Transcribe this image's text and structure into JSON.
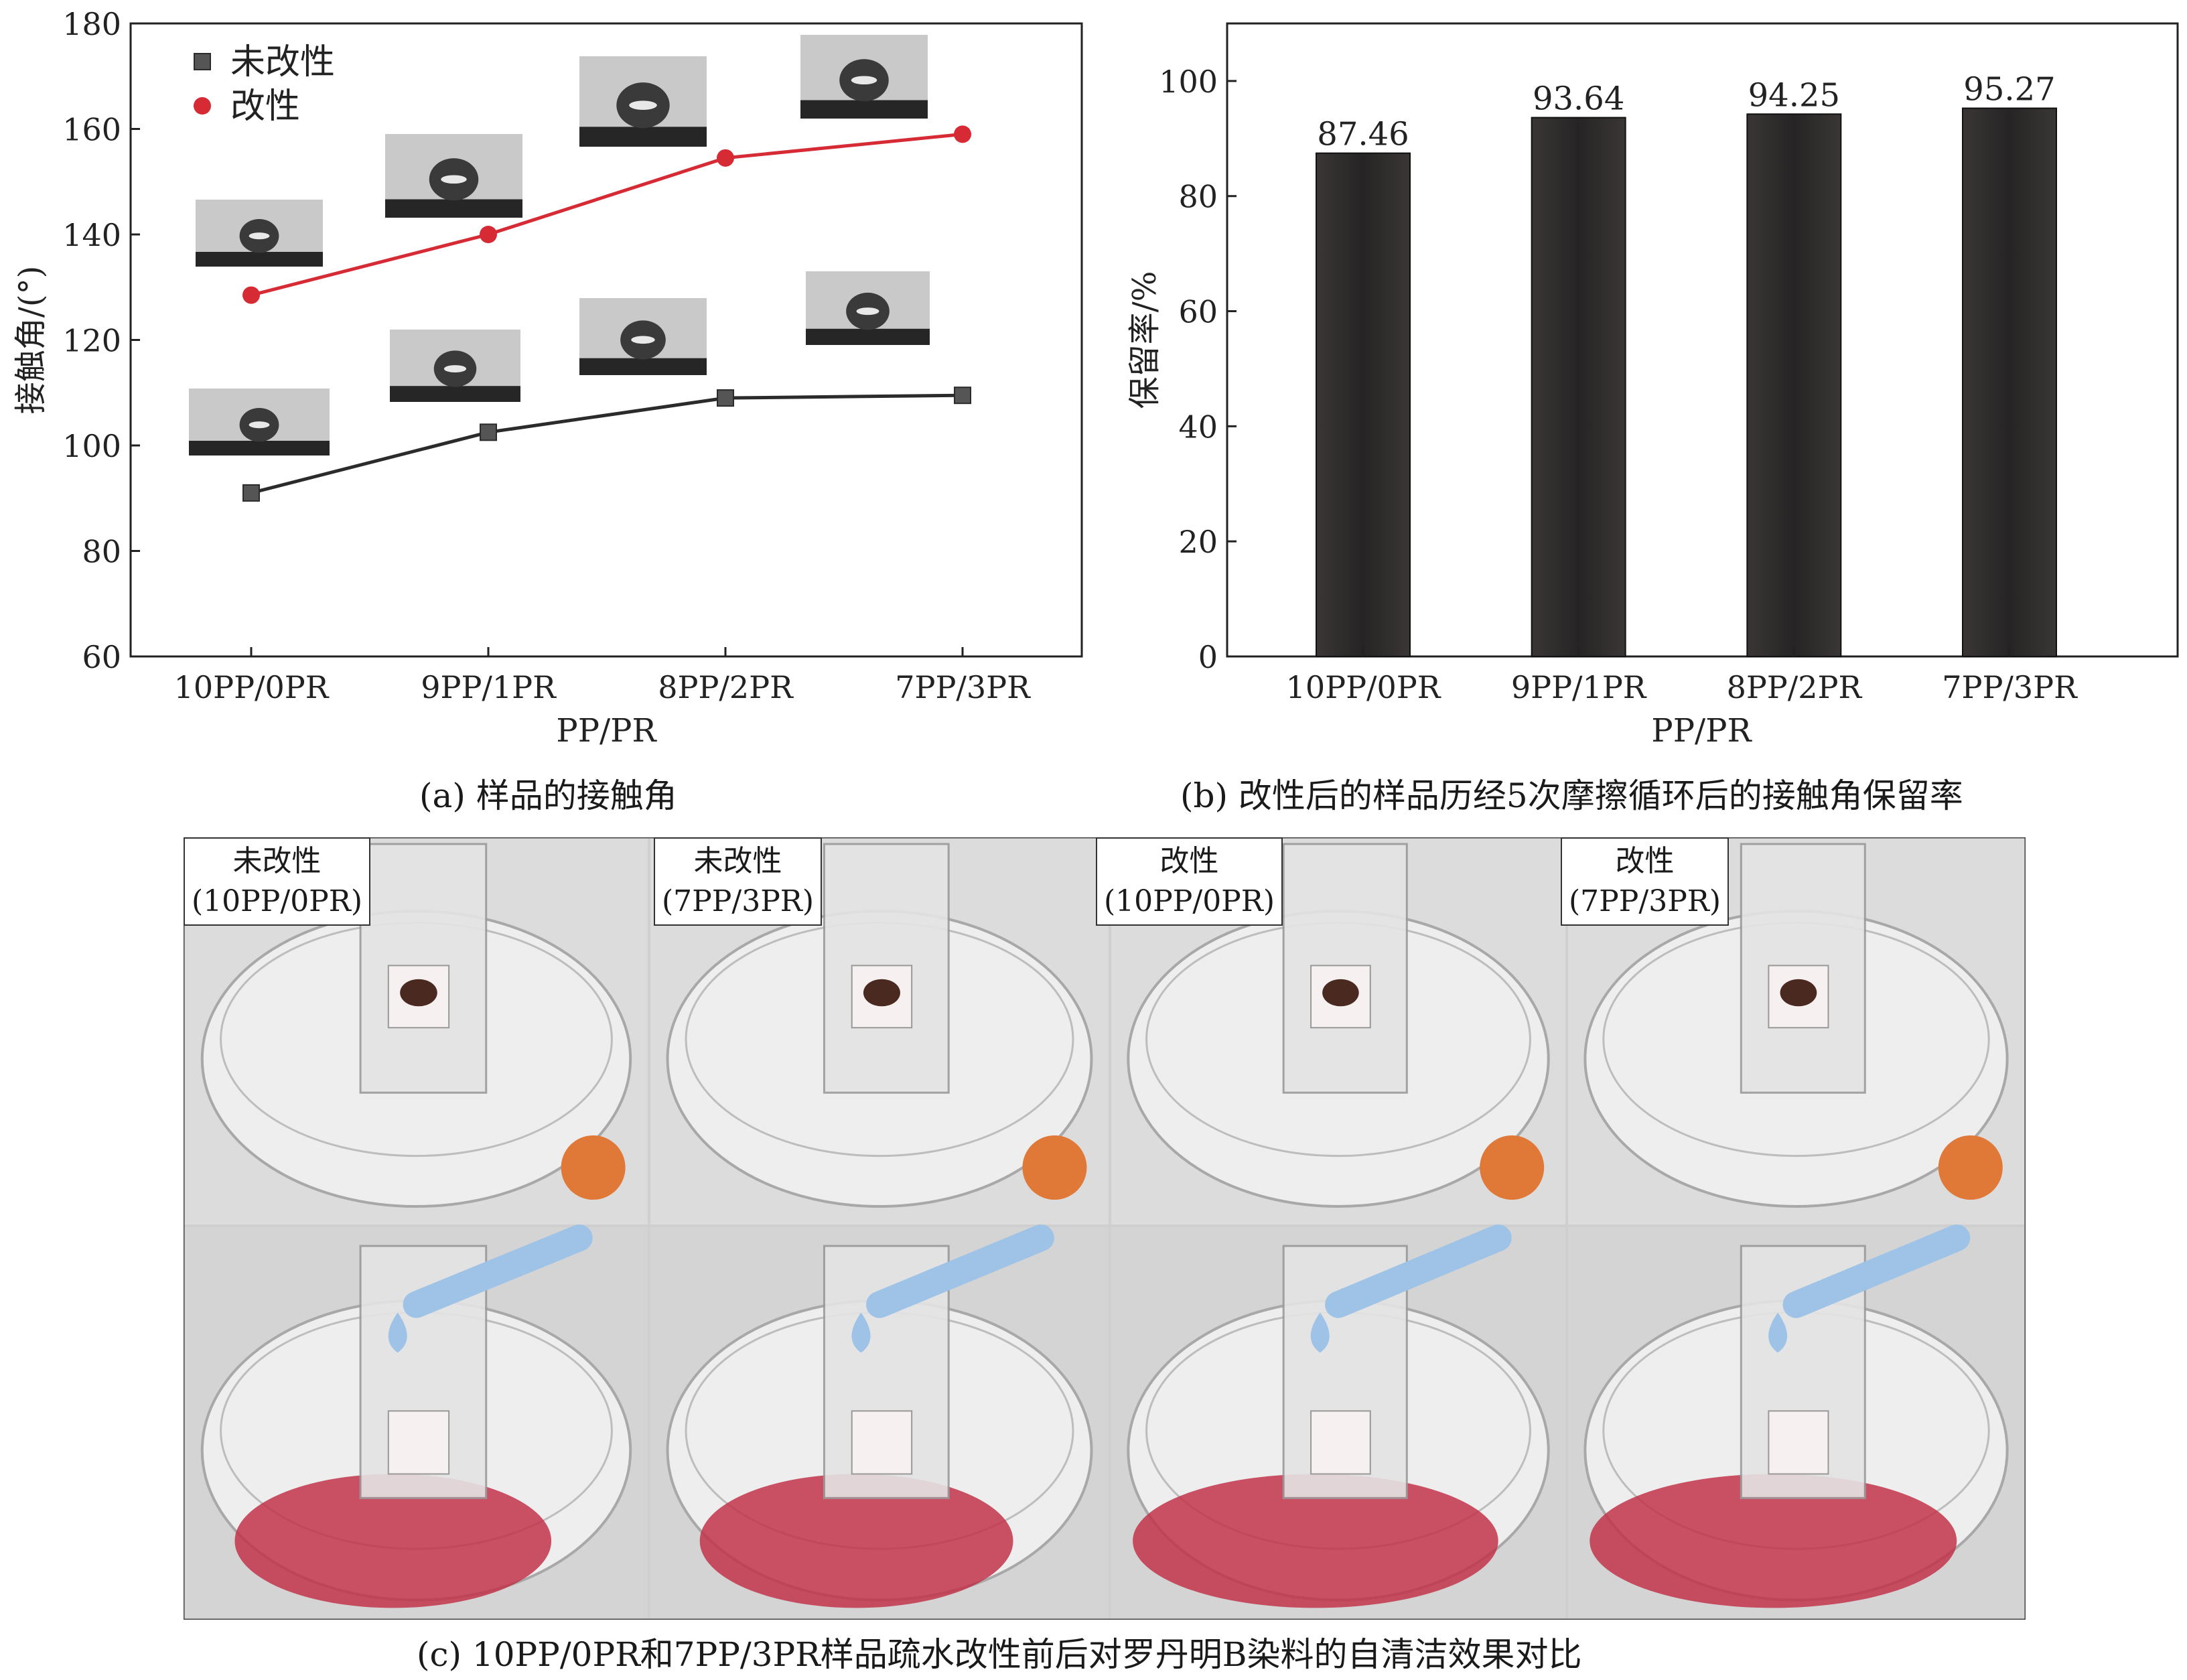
{
  "figure": {
    "caption_a": "(a) 样品的接触角",
    "caption_b": "(b) 改性后的样品历经5次摩擦循环后的接触角保留率",
    "caption_c": "(c) 10PP/0PR和7PP/3PR样品疏水改性前后对罗丹明B染料的自清洁效果对比"
  },
  "chart_data": [
    {
      "type": "line",
      "categories": [
        "10PP/0PR",
        "9PP/1PR",
        "8PP/2PR",
        "7PP/3PR"
      ],
      "series": [
        {
          "name": "未改性",
          "values": [
            91,
            102.5,
            109,
            109.5
          ],
          "color": "#2b2b2b",
          "marker": "square"
        },
        {
          "name": "改性",
          "values": [
            128.5,
            140,
            154.5,
            159
          ],
          "color": "#d62b35",
          "marker": "circle"
        }
      ],
      "xlabel": "PP/PR",
      "ylabel": "接触角/(°)",
      "ylim": [
        60,
        180
      ],
      "yticks": [
        60,
        80,
        100,
        120,
        140,
        160,
        180
      ],
      "legend": "top-left",
      "grid": false
    },
    {
      "type": "bar",
      "categories": [
        "10PP/0PR",
        "9PP/1PR",
        "8PP/2PR",
        "7PP/3PR"
      ],
      "values": [
        87.46,
        93.64,
        94.25,
        95.27
      ],
      "data_labels": [
        "87.46",
        "93.64",
        "94.25",
        "95.27"
      ],
      "xlabel": "PP/PR",
      "ylabel": "保留率/%",
      "ylim": [
        0,
        110
      ],
      "yticks": [
        0,
        20,
        40,
        60,
        80,
        100
      ],
      "color": "#262424",
      "grid": false
    }
  ],
  "photos": {
    "labels": [
      {
        "line1": "未改性",
        "line2": "(10PP/0PR)"
      },
      {
        "line1": "未改性",
        "line2": "(7PP/3PR)"
      },
      {
        "line1": "改性",
        "line2": "(10PP/0PR)"
      },
      {
        "line1": "改性",
        "line2": "(7PP/3PR)"
      }
    ],
    "colors": {
      "dye": "#c2334a",
      "dropper_bulb": "#e07838",
      "dropper_tube": "#9fc3e6",
      "dirt": "#4a2a20"
    }
  }
}
